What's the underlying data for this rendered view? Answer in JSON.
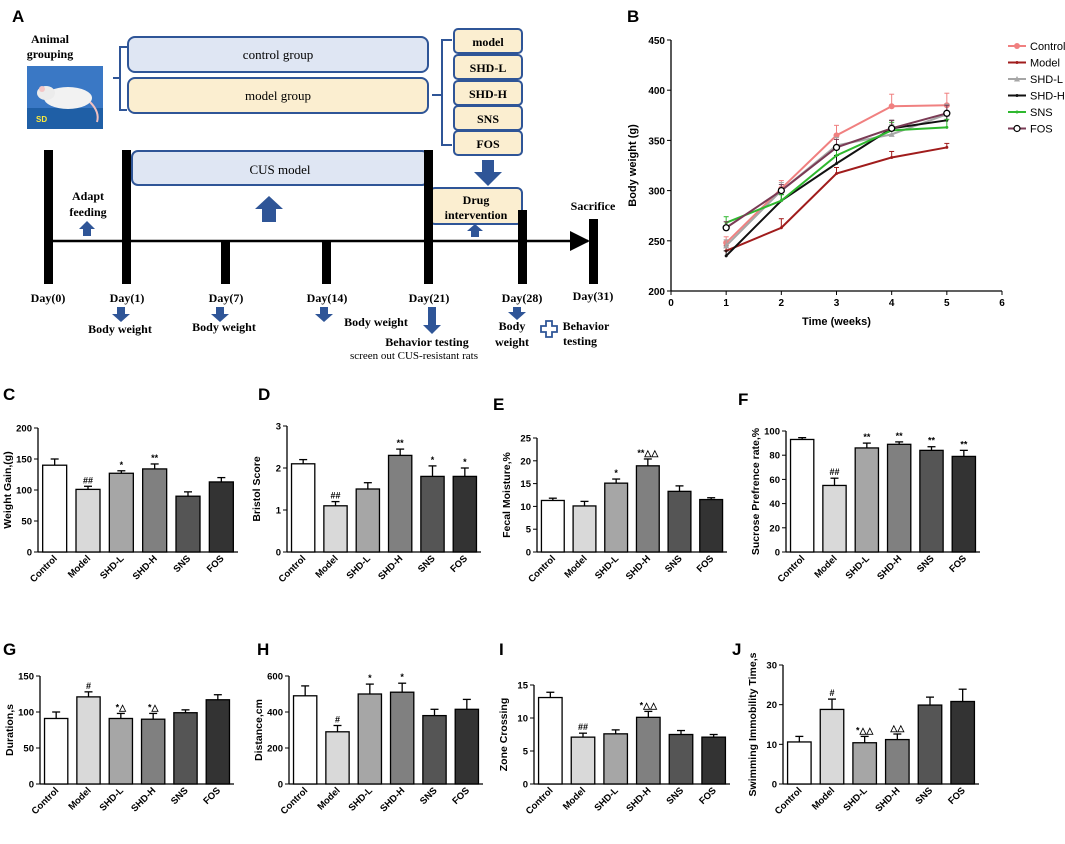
{
  "panel_letters": [
    "A",
    "B",
    "C",
    "D",
    "E",
    "F",
    "G",
    "H",
    "I",
    "J"
  ],
  "colors": {
    "box_fill_blue": "#dfe6f3",
    "box_fill_cream": "#fbeed0",
    "box_stroke": "#2f5597",
    "arrow": "#2f5597"
  },
  "schematic": {
    "animal_grouping": [
      "Animal",
      "grouping"
    ],
    "photo_label": "SD",
    "control_group": "control group",
    "model_group": "model group",
    "groups": [
      "model",
      "SHD-L",
      "SHD-H",
      "SNS",
      "FOS"
    ],
    "cus_model": "CUS model",
    "adapt": [
      "Adapt",
      "feeding"
    ],
    "drug": [
      "Drug",
      "intervention"
    ],
    "sacrifice": "Sacrifice",
    "days": [
      "Day(0)",
      "Day(1)",
      "Day(7)",
      "Day(14)",
      "Day(21)",
      "Day(28)",
      "Day(31)"
    ],
    "body_weight": "Body weight",
    "behavior_testing": "Behavior testing",
    "screen_out": "screen out CUS-resistant rats",
    "body_weight_split": [
      "Body",
      "weight"
    ],
    "behavior_split": [
      "Behavior",
      "testing"
    ]
  },
  "chart_data": [
    {
      "id": "B",
      "type": "line",
      "xlabel": "Time (weeks)",
      "ylabel": "Body weight (g)",
      "xlim": [
        0,
        6
      ],
      "ylim": [
        200,
        450
      ],
      "xticks": [
        0,
        1,
        2,
        3,
        4,
        5,
        6
      ],
      "yticks": [
        200,
        250,
        300,
        350,
        400,
        450
      ],
      "x": [
        1,
        2,
        3,
        4,
        5
      ],
      "series": [
        {
          "name": "Control",
          "color": "#f08080",
          "marker": "circle-filled",
          "values": [
            248,
            302,
            355,
            384,
            385
          ],
          "errors": [
            6,
            8,
            10,
            12,
            12
          ]
        },
        {
          "name": "Model",
          "color": "#a01c1c",
          "marker": "none",
          "values": [
            240,
            263,
            317,
            333,
            343
          ],
          "errors": [
            5,
            9,
            6,
            6,
            4
          ]
        },
        {
          "name": "SHD-L",
          "color": "#a6a6a6",
          "marker": "triangle",
          "values": [
            245,
            300,
            345,
            356,
            376
          ],
          "errors": [
            6,
            8,
            8,
            10,
            10
          ]
        },
        {
          "name": "SHD-H",
          "color": "#111111",
          "marker": "none",
          "values": [
            235,
            290,
            327,
            362,
            370
          ],
          "errors": [
            5,
            6,
            8,
            8,
            8
          ]
        },
        {
          "name": "SNS",
          "color": "#2eb82e",
          "marker": "none",
          "values": [
            268,
            290,
            335,
            360,
            363
          ],
          "errors": [
            6,
            6,
            8,
            8,
            8
          ]
        },
        {
          "name": "FOS",
          "color": "#7a3b55",
          "marker": "circle-open",
          "values": [
            263,
            300,
            343,
            362,
            377
          ],
          "errors": [
            6,
            6,
            8,
            8,
            8
          ]
        }
      ]
    },
    {
      "id": "C",
      "type": "bar",
      "ylabel": "Weight Gain,(g)",
      "ylim": [
        0,
        200
      ],
      "yticks": [
        0,
        50,
        100,
        150,
        200
      ],
      "categories": [
        "Control",
        "Model",
        "SHD-L",
        "SHD-H",
        "SNS",
        "FOS"
      ],
      "values": [
        140,
        101,
        127,
        134,
        90,
        113
      ],
      "errors": [
        10,
        5,
        4,
        8,
        7,
        7
      ],
      "annotations": [
        "",
        "##",
        "*",
        "**",
        "",
        ""
      ]
    },
    {
      "id": "D",
      "type": "bar",
      "ylabel": "Bristol Score",
      "ylim": [
        0,
        3
      ],
      "yticks": [
        0,
        1,
        2,
        3
      ],
      "categories": [
        "Control",
        "Model",
        "SHD-L",
        "SHD-H",
        "SNS",
        "FOS"
      ],
      "values": [
        2.1,
        1.1,
        1.5,
        2.3,
        1.8,
        1.8
      ],
      "errors": [
        0.1,
        0.1,
        0.15,
        0.15,
        0.25,
        0.2
      ],
      "annotations": [
        "",
        "##",
        "",
        "**",
        "*",
        "*"
      ]
    },
    {
      "id": "E",
      "type": "bar",
      "ylabel": "Fecal Moisture,%",
      "ylim": [
        0,
        25
      ],
      "yticks": [
        0,
        5,
        10,
        15,
        20,
        25
      ],
      "categories": [
        "Control",
        "Model",
        "SHD-L",
        "SHD-H",
        "SNS",
        "FOS"
      ],
      "values": [
        11.3,
        10.1,
        15.1,
        18.9,
        13.3,
        11.5
      ],
      "errors": [
        0.5,
        1,
        0.9,
        1.5,
        1.2,
        0.4
      ],
      "annotations": [
        "",
        "",
        "*",
        "**△△",
        "",
        ""
      ]
    },
    {
      "id": "F",
      "type": "bar",
      "ylabel": "Sucrose Prefrence rate,%",
      "ylim": [
        0,
        100
      ],
      "yticks": [
        0,
        20,
        40,
        60,
        80,
        100
      ],
      "categories": [
        "Control",
        "Model",
        "SHD-L",
        "SHD-H",
        "SNS",
        "FOS"
      ],
      "values": [
        93,
        55,
        86,
        89,
        84,
        79
      ],
      "errors": [
        1.5,
        6,
        4,
        2,
        3,
        5
      ],
      "annotations": [
        "",
        "##",
        "**",
        "**",
        "**",
        "**"
      ]
    },
    {
      "id": "G",
      "type": "bar",
      "ylabel": "Duration,s",
      "ylim": [
        0,
        150
      ],
      "yticks": [
        0,
        50,
        100,
        150
      ],
      "categories": [
        "Control",
        "Model",
        "SHD-L",
        "SHD-H",
        "SNS",
        "FOS"
      ],
      "values": [
        91,
        121,
        91,
        90,
        99,
        117
      ],
      "errors": [
        9,
        7,
        7,
        8,
        4,
        7
      ],
      "annotations": [
        "",
        "#",
        "*△",
        "*△",
        "",
        ""
      ]
    },
    {
      "id": "H",
      "type": "bar",
      "ylabel": "Distance,cm",
      "ylim": [
        0,
        600
      ],
      "yticks": [
        0,
        200,
        400,
        600
      ],
      "categories": [
        "Control",
        "Model",
        "SHD-L",
        "SHD-H",
        "SNS",
        "FOS"
      ],
      "values": [
        490,
        290,
        500,
        510,
        380,
        415
      ],
      "errors": [
        55,
        35,
        55,
        50,
        35,
        55
      ],
      "annotations": [
        "",
        "#",
        "*",
        "*",
        "",
        ""
      ]
    },
    {
      "id": "I",
      "type": "bar",
      "ylabel": "Zone Crossing",
      "ylim": [
        0,
        15
      ],
      "yticks": [
        0,
        5,
        10,
        15
      ],
      "categories": [
        "Control",
        "Model",
        "SHD-L",
        "SHD-H",
        "SNS",
        "FOS"
      ],
      "values": [
        13.1,
        7.1,
        7.6,
        10.1,
        7.5,
        7.1
      ],
      "errors": [
        0.8,
        0.6,
        0.6,
        0.9,
        0.6,
        0.4
      ],
      "annotations": [
        "",
        "##",
        "",
        "*△△",
        "",
        ""
      ]
    },
    {
      "id": "J",
      "type": "bar",
      "ylabel": "Swimming Immobility Time,s",
      "ylim": [
        0,
        30
      ],
      "yticks": [
        0,
        10,
        20,
        30
      ],
      "categories": [
        "Control",
        "Model",
        "SHD-L",
        "SHD-H",
        "SNS",
        "FOS"
      ],
      "values": [
        10.6,
        18.8,
        10.4,
        11.2,
        19.9,
        20.8
      ],
      "errors": [
        1.4,
        2.6,
        1.6,
        1.4,
        2.0,
        3.1
      ],
      "annotations": [
        "",
        "#",
        "*△△",
        "△△",
        "",
        ""
      ]
    }
  ]
}
